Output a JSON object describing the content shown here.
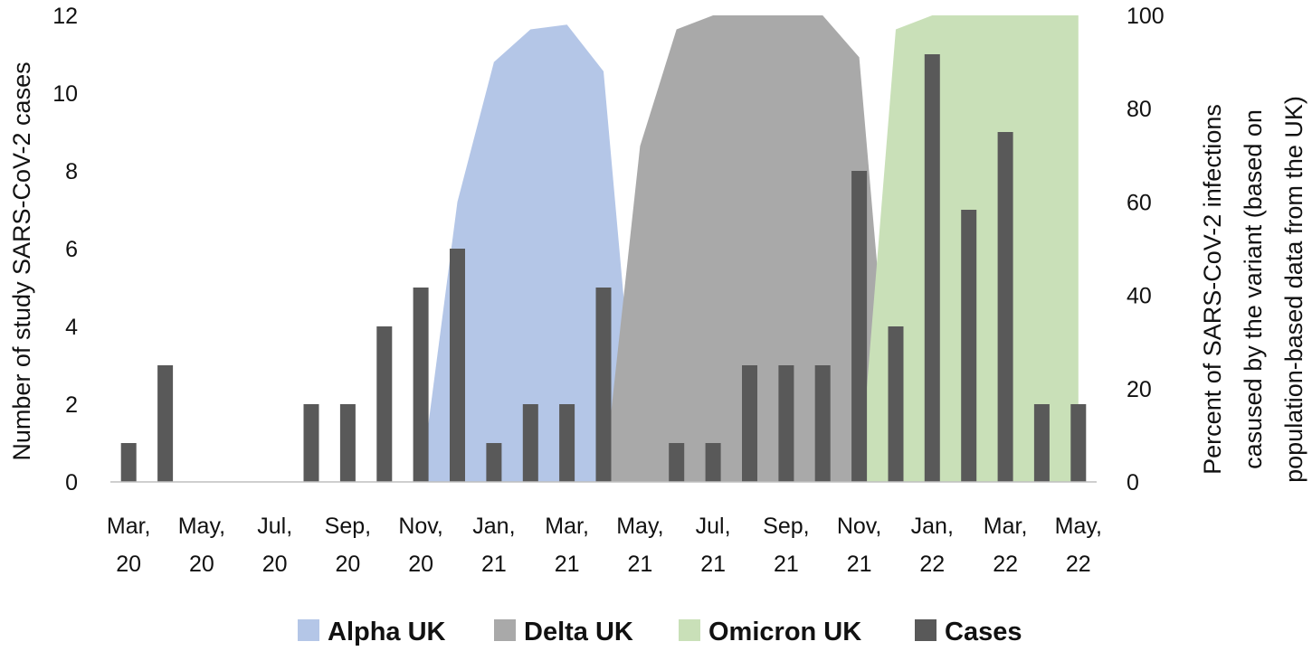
{
  "chart_data": {
    "type": "bar",
    "title": "",
    "x": [
      "Mar 20",
      "Apr 20",
      "May 20",
      "Jun 20",
      "Jul 20",
      "Aug 20",
      "Sep 20",
      "Oct 20",
      "Nov 20",
      "Dec 20",
      "Jan 21",
      "Feb 21",
      "Mar 21",
      "Apr 21",
      "May 21",
      "Jun 21",
      "Jul 21",
      "Aug 21",
      "Sep 21",
      "Oct 21",
      "Nov 21",
      "Dec 21",
      "Jan 22",
      "Feb 22",
      "Mar 22",
      "Apr 22",
      "May 22"
    ],
    "x_tick_labels": [
      {
        "line1": "Mar,",
        "line2": "20"
      },
      {
        "line1": "May,",
        "line2": "20"
      },
      {
        "line1": "Jul,",
        "line2": "20"
      },
      {
        "line1": "Sep,",
        "line2": "20"
      },
      {
        "line1": "Nov,",
        "line2": "20"
      },
      {
        "line1": "Jan,",
        "line2": "21"
      },
      {
        "line1": "Mar,",
        "line2": "21"
      },
      {
        "line1": "May,",
        "line2": "21"
      },
      {
        "line1": "Jul,",
        "line2": "21"
      },
      {
        "line1": "Sep,",
        "line2": "21"
      },
      {
        "line1": "Nov,",
        "line2": "21"
      },
      {
        "line1": "Jan,",
        "line2": "22"
      },
      {
        "line1": "Mar,",
        "line2": "22"
      },
      {
        "line1": "May,",
        "line2": "22"
      }
    ],
    "ylabel_left": "Number of study SARS-CoV-2 cases",
    "ylabel_right_lines": [
      "Percent of SARS-CoV-2 infections",
      "casused by the variant (based on",
      "population-based data from the UK)"
    ],
    "ylim_left": [
      0,
      12
    ],
    "yticks_left": [
      0,
      2,
      4,
      6,
      8,
      10,
      12
    ],
    "ylim_right": [
      0,
      100
    ],
    "yticks_right": [
      0,
      20,
      40,
      60,
      80,
      100
    ],
    "grid": false,
    "legend_position": "bottom",
    "series": [
      {
        "name": "Alpha UK",
        "type": "area",
        "axis": "right",
        "color": "#b4c6e7",
        "points": [
          [
            "Nov 20",
            0
          ],
          [
            "Dec 20",
            60
          ],
          [
            "Jan 21",
            90
          ],
          [
            "Feb 21",
            97
          ],
          [
            "Mar 21",
            98
          ],
          [
            "Apr 21",
            88
          ],
          [
            "May 21",
            0
          ]
        ]
      },
      {
        "name": "Delta UK",
        "type": "area",
        "axis": "right",
        "color": "#a9a9a9",
        "points": [
          [
            "Apr 21",
            0
          ],
          [
            "May 21",
            72
          ],
          [
            "Jun 21",
            97
          ],
          [
            "Jul 21",
            100
          ],
          [
            "Aug 21",
            100
          ],
          [
            "Sep 21",
            100
          ],
          [
            "Oct 21",
            100
          ],
          [
            "Nov 21",
            91
          ],
          [
            "Dec 21",
            0
          ]
        ]
      },
      {
        "name": "Omicron UK",
        "type": "area",
        "axis": "right",
        "color": "#c9e0b8",
        "points": [
          [
            "Nov 21",
            0
          ],
          [
            "Dec 21",
            97
          ],
          [
            "Jan 22",
            100
          ],
          [
            "Feb 22",
            100
          ],
          [
            "Mar 22",
            100
          ],
          [
            "Apr 22",
            100
          ],
          [
            "May 22",
            100
          ]
        ]
      },
      {
        "name": "Cases",
        "type": "bar",
        "axis": "left",
        "color": "#595959",
        "values": [
          1,
          3,
          0,
          0,
          0,
          2,
          2,
          4,
          5,
          6,
          1,
          2,
          2,
          5,
          0,
          1,
          1,
          3,
          3,
          3,
          8,
          4,
          11,
          7,
          9,
          2,
          2
        ]
      }
    ]
  }
}
